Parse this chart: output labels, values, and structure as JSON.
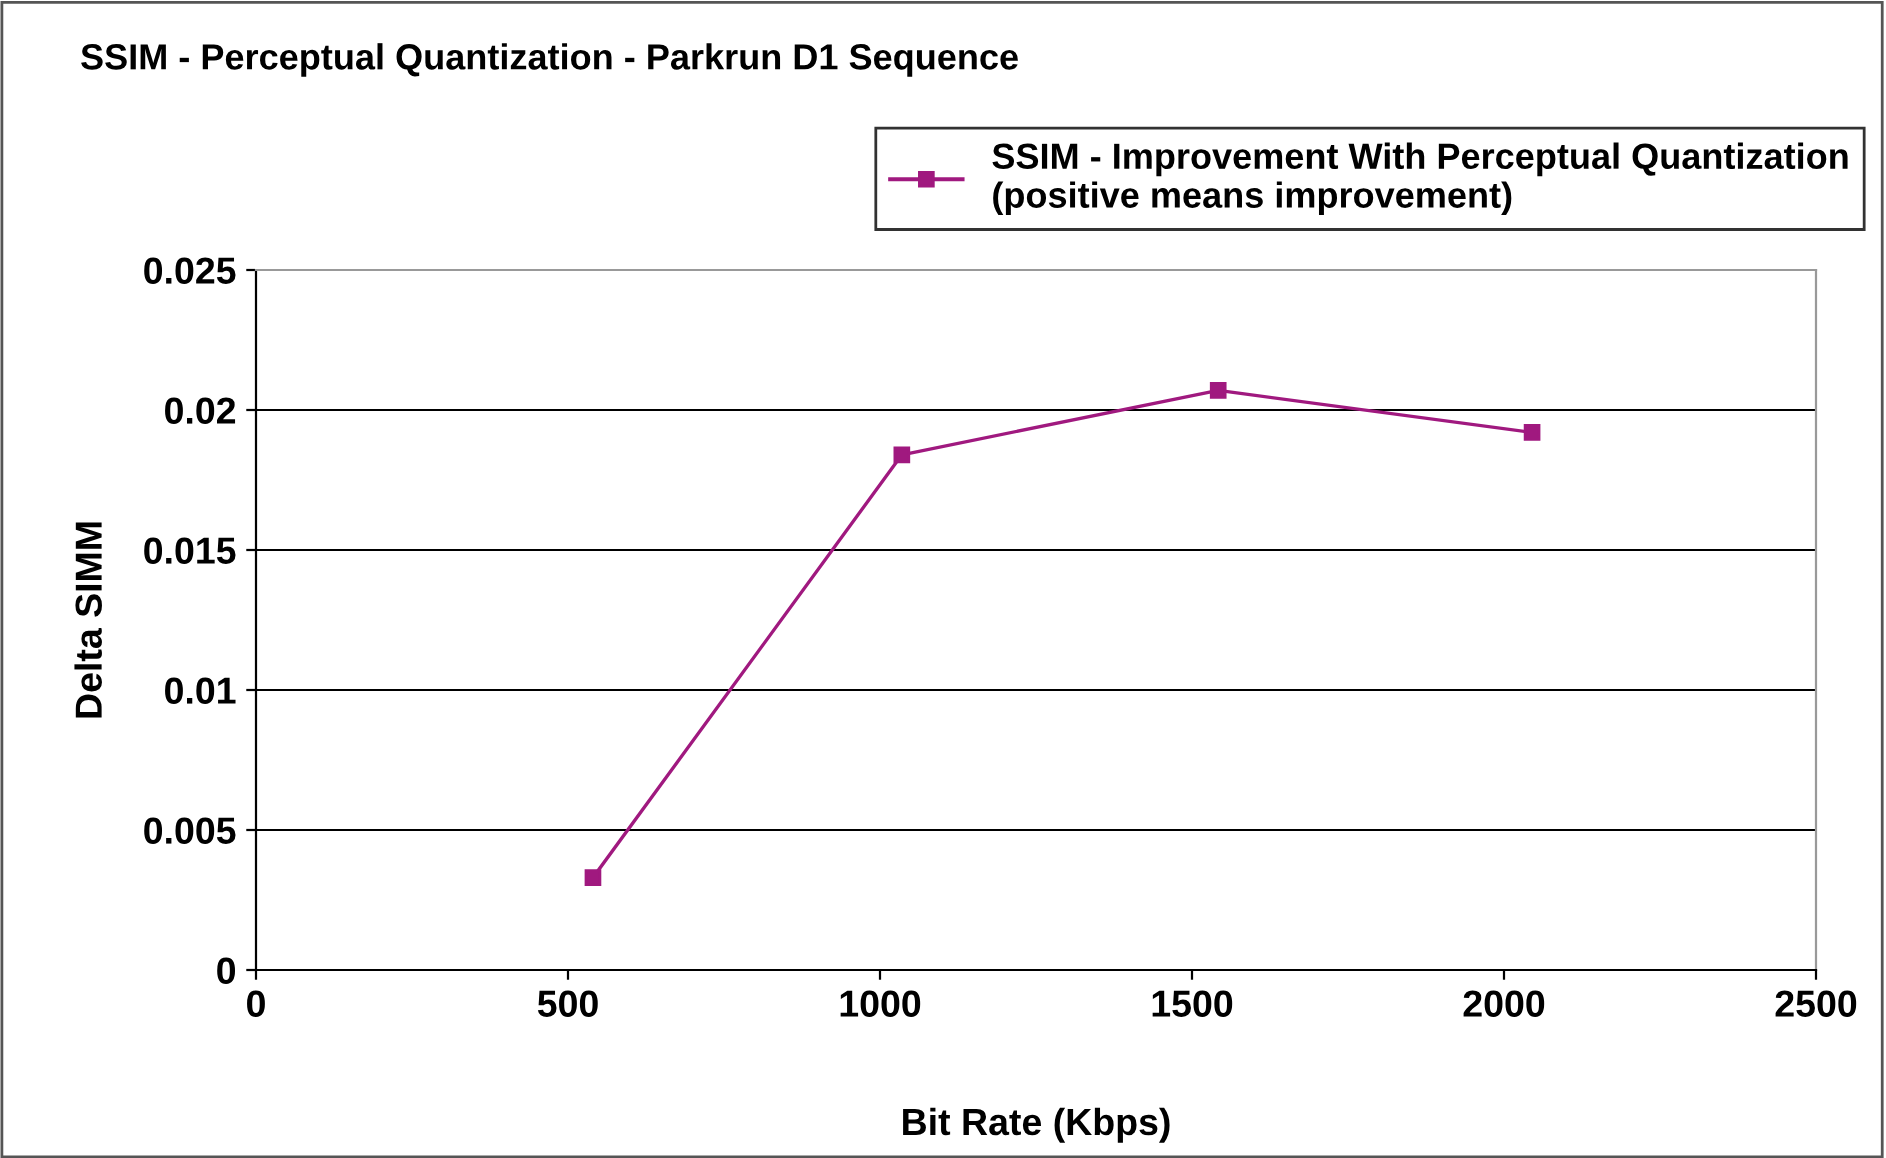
{
  "chart_data": {
    "type": "line",
    "title": "SSIM - Perceptual Quantization - Parkrun D1 Sequence",
    "xlabel": "Bit Rate (Kbps)",
    "ylabel": "Delta SIMM",
    "x": [
      540,
      1035,
      1542,
      2045
    ],
    "series": [
      {
        "name": "SSIM - Improvement With Perceptual Quantization\n(positive means improvement)",
        "color": "#a0197f",
        "values": [
          0.0033,
          0.0184,
          0.0207,
          0.0192
        ]
      }
    ],
    "xlim": [
      0,
      2500
    ],
    "xticks": [
      0,
      500,
      1000,
      1500,
      2000,
      2500
    ],
    "ylim": [
      0,
      0.025
    ],
    "yticks": [
      0,
      0.005,
      0.01,
      0.015,
      0.02,
      0.025
    ],
    "grid": "y",
    "legend": "top right",
    "marker": "square",
    "line_style": "solid"
  }
}
